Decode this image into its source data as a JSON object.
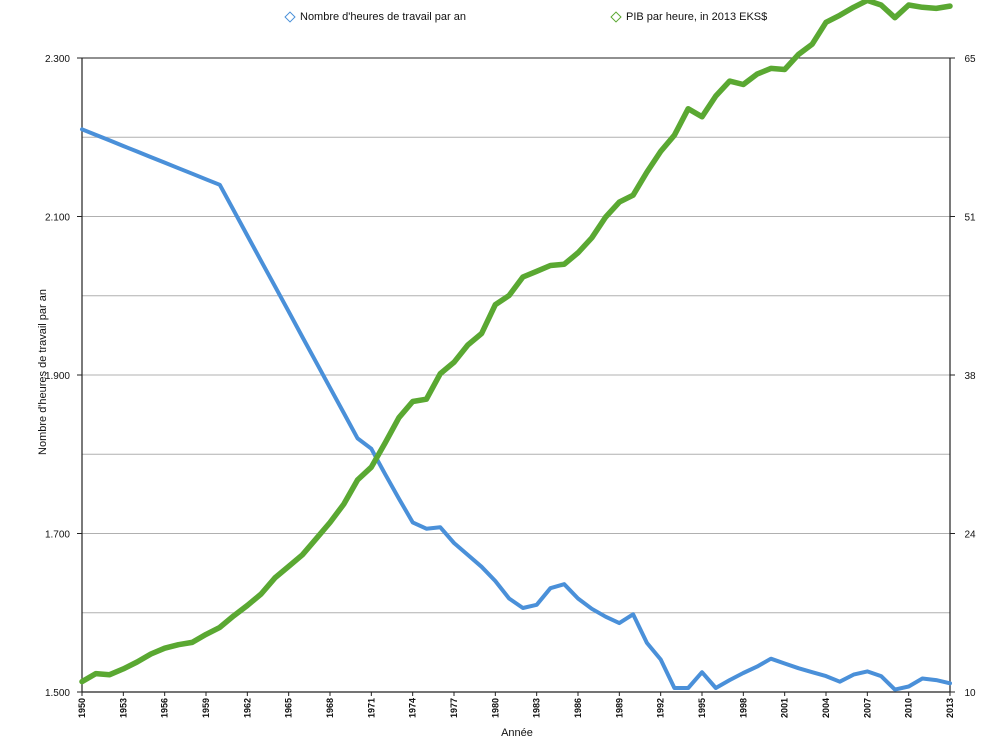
{
  "chart_data": {
    "type": "line",
    "xlabel": "Année",
    "ylabel": "Nombre d'heures de travail par an",
    "x": [
      1950,
      1951,
      1952,
      1953,
      1954,
      1955,
      1956,
      1957,
      1958,
      1959,
      1960,
      1961,
      1962,
      1963,
      1964,
      1965,
      1966,
      1967,
      1968,
      1969,
      1970,
      1971,
      1972,
      1973,
      1974,
      1975,
      1976,
      1977,
      1978,
      1979,
      1980,
      1981,
      1982,
      1983,
      1984,
      1985,
      1986,
      1987,
      1988,
      1989,
      1990,
      1991,
      1992,
      1993,
      1994,
      1995,
      1996,
      1997,
      1998,
      1999,
      2000,
      2001,
      2002,
      2003,
      2004,
      2005,
      2006,
      2007,
      2008,
      2009,
      2010,
      2011,
      2012,
      2013
    ],
    "x_ticks": [
      "1950",
      "1953",
      "1956",
      "1959",
      "1962",
      "1965",
      "1968",
      "1971",
      "1974",
      "1977",
      "1980",
      "1983",
      "1986",
      "1989",
      "1992",
      "1995",
      "1998",
      "2001",
      "2004",
      "2007",
      "2010",
      "2013"
    ],
    "y_left_ticks": [
      "2.300",
      "2.100",
      "1.900",
      "1.700",
      "1.500"
    ],
    "y_left_lim": [
      1500,
      2300
    ],
    "y_right_ticks": [
      "65",
      "51",
      "38",
      "24",
      "10"
    ],
    "y_right_lim": [
      10,
      65
    ],
    "grid": true,
    "legend_position": "top",
    "series": [
      {
        "name": "Nombre d'heures de travail par an",
        "axis": "left",
        "color": "#4a90d9",
        "values": [
          2210,
          2203,
          2196,
          2189,
          2182,
          2175,
          2168,
          2161,
          2154,
          2147,
          2140,
          2108,
          2076,
          2044,
          2012,
          1980,
          1948,
          1916,
          1884,
          1852,
          1820,
          1807,
          1775,
          1744,
          1714,
          1706,
          1708,
          1688,
          1673,
          1658,
          1640,
          1618,
          1606,
          1610,
          1631,
          1636,
          1618,
          1605,
          1595,
          1587,
          1598,
          1562,
          1541,
          1505,
          1505,
          1525,
          1505,
          1515,
          1524,
          1532,
          1542,
          1536,
          1530,
          1525,
          1520,
          1513,
          1522,
          1526,
          1520,
          1503,
          1507,
          1517,
          1515,
          1511
        ]
      },
      {
        "name": "PIB par heure, in 2013 EKS$",
        "axis": "right",
        "color": "#5aa832",
        "values": [
          10.9,
          11.6,
          11.5,
          12.0,
          12.6,
          13.3,
          13.8,
          14.1,
          14.3,
          15.0,
          15.6,
          16.6,
          17.5,
          18.5,
          19.9,
          20.9,
          21.9,
          23.3,
          24.7,
          26.3,
          28.4,
          29.5,
          31.6,
          33.8,
          35.2,
          35.4,
          37.6,
          38.6,
          40.1,
          41.1,
          43.6,
          44.4,
          46.0,
          46.5,
          47.0,
          47.1,
          48.1,
          49.4,
          51.2,
          52.5,
          53.1,
          55.1,
          56.9,
          58.3,
          60.6,
          59.9,
          61.7,
          63.0,
          62.7,
          63.6,
          64.1,
          64.0,
          65.3,
          66.2,
          68.1,
          68.7,
          69.4,
          70.0,
          69.6,
          68.5,
          69.6,
          69.4,
          69.3,
          69.5
        ]
      }
    ]
  }
}
